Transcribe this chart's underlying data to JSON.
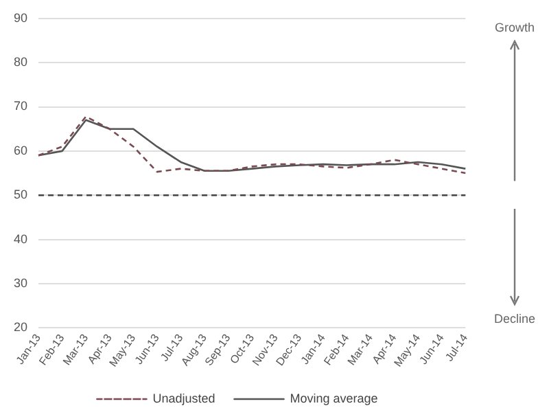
{
  "chart_data": {
    "type": "line",
    "categories": [
      "Jan-13",
      "Feb-13",
      "Mar-13",
      "Apr-13",
      "May-13",
      "Jun-13",
      "Jul-13",
      "Aug-13",
      "Sep-13",
      "Oct-13",
      "Nov-13",
      "Dec-13",
      "Jan-14",
      "Feb-14",
      "Mar-14",
      "Apr-14",
      "May-14",
      "Jun-14",
      "Jul-14"
    ],
    "series": [
      {
        "name": "Unadjusted",
        "color": "#7a4a52",
        "line_style": "dashed",
        "values": [
          59,
          61,
          67.8,
          65,
          61,
          55.3,
          56,
          55.5,
          55.5,
          56.5,
          57,
          57,
          56.5,
          56.2,
          57,
          58,
          57,
          56,
          55
        ]
      },
      {
        "name": "Moving average",
        "color": "#555555",
        "line_style": "solid",
        "values": [
          59,
          60,
          67,
          65,
          65,
          61,
          57.5,
          55.5,
          55.5,
          56,
          56.5,
          56.8,
          57,
          56.8,
          57,
          57,
          57.5,
          57,
          56
        ]
      }
    ],
    "ylim": [
      20,
      90
    ],
    "yticks": [
      20,
      30,
      40,
      50,
      60,
      70,
      80,
      90
    ],
    "grid": "y",
    "legend": "bottom",
    "marker": "none",
    "ref_lines": [
      {
        "axis": "y",
        "value": 50,
        "color": "#444444",
        "line_style": "dashed"
      }
    ],
    "annotations": [
      "Growth",
      "Decline"
    ]
  }
}
